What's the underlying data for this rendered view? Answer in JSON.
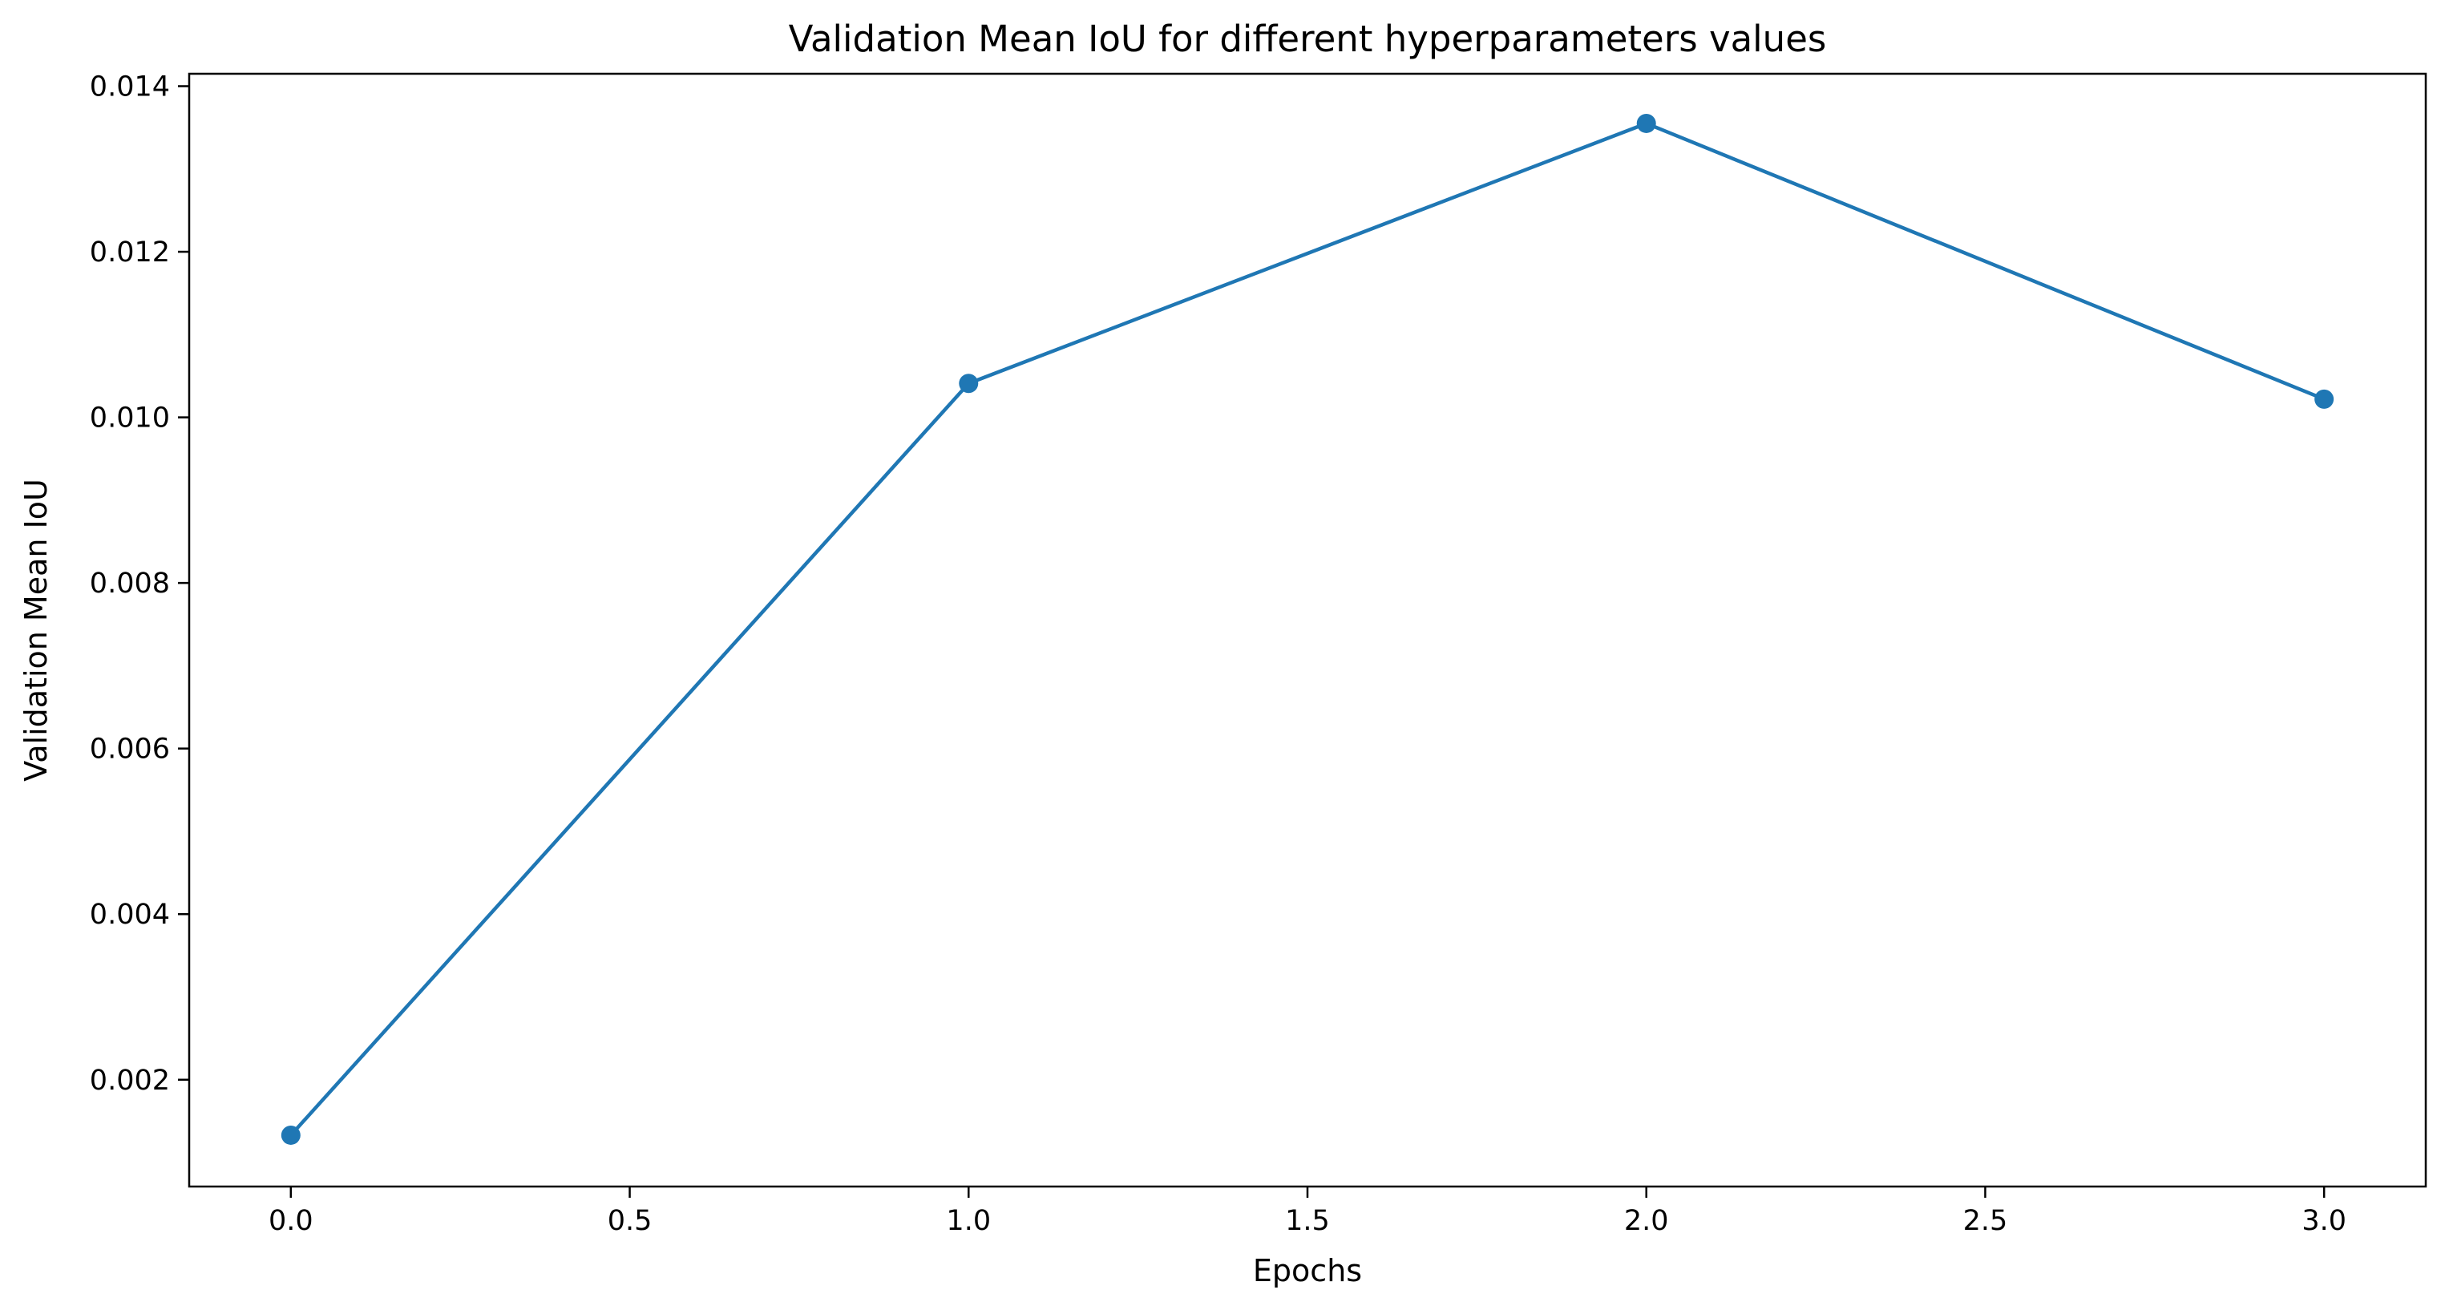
{
  "chart_data": {
    "type": "line",
    "title": "Validation Mean IoU for different hyperparameters values",
    "xlabel": "Epochs",
    "ylabel": "Validation Mean IoU",
    "x": [
      0,
      1,
      2,
      3
    ],
    "series": [
      {
        "values": [
          0.00133,
          0.01041,
          0.01355,
          0.01022
        ],
        "color": "#1f77b4",
        "marker": "circle"
      }
    ],
    "xlim": [
      -0.15,
      3.15
    ],
    "ylim": [
      0.00071,
      0.01415
    ],
    "xticks": [
      0.0,
      0.5,
      1.0,
      1.5,
      2.0,
      2.5,
      3.0
    ],
    "xtick_labels": [
      "0.0",
      "0.5",
      "1.0",
      "1.5",
      "2.0",
      "2.5",
      "3.0"
    ],
    "yticks": [
      0.002,
      0.004,
      0.006,
      0.008,
      0.01,
      0.012,
      0.014
    ],
    "ytick_labels": [
      "0.002",
      "0.004",
      "0.006",
      "0.008",
      "0.010",
      "0.012",
      "0.014"
    ],
    "grid": false,
    "legend": "none"
  }
}
